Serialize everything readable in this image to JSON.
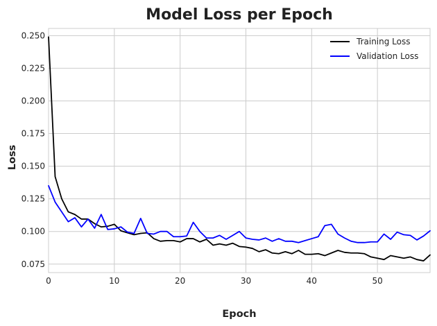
{
  "chart_data": {
    "type": "line",
    "title": "Model Loss per Epoch",
    "xlabel": "Epoch",
    "ylabel": "Loss",
    "xlim": [
      0,
      58
    ],
    "ylim": [
      0.0685,
      0.2555
    ],
    "x_ticks": [
      0,
      10,
      20,
      30,
      40,
      50
    ],
    "y_ticks": [
      0.075,
      0.1,
      0.125,
      0.15,
      0.175,
      0.2,
      0.225,
      0.25
    ],
    "y_tick_labels": [
      "0.075",
      "0.100",
      "0.125",
      "0.150",
      "0.175",
      "0.200",
      "0.225",
      "0.250"
    ],
    "grid": true,
    "legend_position": "top-right",
    "series": [
      {
        "name": "Training Loss",
        "color": "#000000",
        "x": [
          0,
          1,
          2,
          3,
          4,
          5,
          6,
          7,
          8,
          9,
          10,
          11,
          12,
          13,
          14,
          15,
          16,
          17,
          18,
          19,
          20,
          21,
          22,
          23,
          24,
          25,
          26,
          27,
          28,
          29,
          30,
          31,
          32,
          33,
          34,
          35,
          36,
          37,
          38,
          39,
          40,
          41,
          42,
          43,
          44,
          45,
          46,
          47,
          48,
          49,
          50,
          51,
          52,
          53,
          54,
          55,
          56,
          57,
          58
        ],
        "values": [
          0.249,
          0.142,
          0.125,
          0.115,
          0.113,
          0.1095,
          0.1095,
          0.106,
          0.1035,
          0.104,
          0.1055,
          0.1005,
          0.099,
          0.0975,
          0.0985,
          0.099,
          0.0945,
          0.0925,
          0.093,
          0.093,
          0.092,
          0.0945,
          0.0945,
          0.092,
          0.094,
          0.0895,
          0.0905,
          0.0895,
          0.091,
          0.0885,
          0.088,
          0.087,
          0.0845,
          0.086,
          0.0835,
          0.083,
          0.0845,
          0.083,
          0.0855,
          0.0825,
          0.0825,
          0.083,
          0.0815,
          0.0835,
          0.0855,
          0.084,
          0.0835,
          0.0835,
          0.083,
          0.0805,
          0.0795,
          0.0785,
          0.0815,
          0.0805,
          0.0795,
          0.0805,
          0.0785,
          0.0775,
          0.082
        ]
      },
      {
        "name": "Validation Loss",
        "color": "#0000ff",
        "x": [
          0,
          1,
          2,
          3,
          4,
          5,
          6,
          7,
          8,
          9,
          10,
          11,
          12,
          13,
          14,
          15,
          16,
          17,
          18,
          19,
          20,
          21,
          22,
          23,
          24,
          25,
          26,
          27,
          28,
          29,
          30,
          31,
          32,
          33,
          34,
          35,
          36,
          37,
          38,
          39,
          40,
          41,
          42,
          43,
          44,
          45,
          46,
          47,
          48,
          49,
          50,
          51,
          52,
          53,
          54,
          55,
          56,
          57,
          58
        ],
        "values": [
          0.135,
          0.1225,
          0.115,
          0.1075,
          0.1105,
          0.1035,
          0.1095,
          0.1025,
          0.113,
          0.1015,
          0.102,
          0.1035,
          0.0995,
          0.0985,
          0.11,
          0.0985,
          0.098,
          0.1,
          0.1,
          0.096,
          0.096,
          0.0965,
          0.107,
          0.1,
          0.095,
          0.095,
          0.097,
          0.094,
          0.097,
          0.1,
          0.095,
          0.094,
          0.0935,
          0.095,
          0.0925,
          0.0945,
          0.0925,
          0.0925,
          0.0915,
          0.093,
          0.0945,
          0.096,
          0.1045,
          0.1055,
          0.098,
          0.095,
          0.0925,
          0.0915,
          0.0915,
          0.092,
          0.092,
          0.098,
          0.094,
          0.0995,
          0.0975,
          0.097,
          0.0935,
          0.0965,
          0.1005
        ]
      }
    ]
  }
}
